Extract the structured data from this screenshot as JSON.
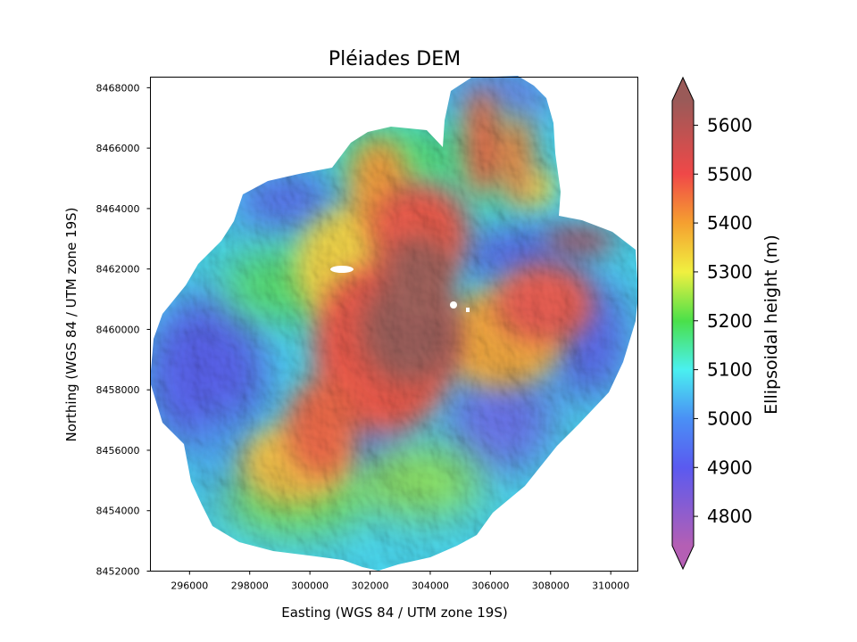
{
  "chart_data": {
    "type": "heatmap",
    "title": "Pléiades DEM",
    "xlabel": "Easting (WGS 84 / UTM zone 19S)",
    "ylabel": "Northing (WGS 84 / UTM zone 19S)",
    "xlim": [
      294700,
      310900
    ],
    "ylim": [
      8452000,
      8468350
    ],
    "x_ticks": [
      "296000",
      "298000",
      "300000",
      "302000",
      "304000",
      "306000",
      "308000",
      "310000"
    ],
    "y_ticks": [
      "8452000",
      "8454000",
      "8456000",
      "8458000",
      "8460000",
      "8462000",
      "8464000",
      "8466000",
      "8468000"
    ],
    "grid": false,
    "colorbar": {
      "label": "Ellipsoidal height (m)",
      "range": [
        4740,
        5650
      ],
      "extend": "both",
      "ticks": [
        "4800",
        "4900",
        "5000",
        "5100",
        "5200",
        "5300",
        "5400",
        "5500",
        "5600"
      ],
      "colormap": "rainbow (magenta-blue-cyan-green-yellow-red-brown), semi-transparent over hillshade",
      "stops": [
        {
          "value": 4740,
          "color": "#b45fb4"
        },
        {
          "value": 4900,
          "color": "#5a5af0"
        },
        {
          "value": 5000,
          "color": "#4a90f5"
        },
        {
          "value": 5100,
          "color": "#4af0f0"
        },
        {
          "value": 5200,
          "color": "#4ae04a"
        },
        {
          "value": 5300,
          "color": "#f0f040"
        },
        {
          "value": 5400,
          "color": "#f5a030"
        },
        {
          "value": 5500,
          "color": "#f04848"
        },
        {
          "value": 5650,
          "color": "#9a5a58"
        }
      ]
    },
    "surface_summary": {
      "summit_plateau": {
        "easting": 304000,
        "northing": 8459500,
        "height": 5640
      },
      "north_ridge": {
        "easting": 302000,
        "northing": 8464500,
        "height": 5450
      },
      "east_ridge": {
        "easting": 307200,
        "northing": 8460200,
        "height": 5450
      },
      "northeast_lobe": {
        "easting": 307000,
        "northing": 8467000,
        "height": 4950
      },
      "west_slopes": {
        "easting": 296000,
        "northing": 8459000,
        "height": 4950
      },
      "south_valleys": {
        "easting": 301000,
        "northing": 8453500,
        "height": 5150
      }
    },
    "nodata_areas": [
      {
        "easting": 301000,
        "northing": 8461950
      },
      {
        "easting": 304900,
        "northing": 8460800
      }
    ]
  }
}
